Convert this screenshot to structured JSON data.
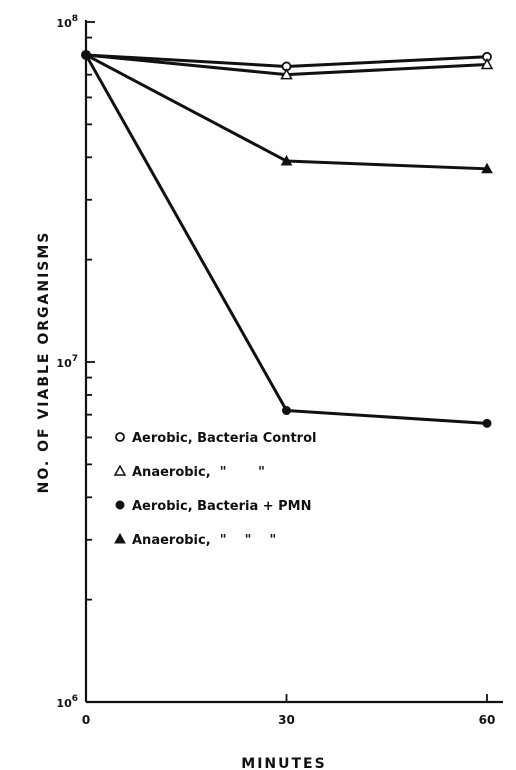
{
  "chart_data": {
    "type": "line",
    "xlabel": "MINUTES",
    "ylabel": "NO. OF VIABLE ORGANISMS",
    "x_ticks": [
      0,
      30,
      60
    ],
    "x_tick_labels": [
      "0",
      "30",
      "60"
    ],
    "xlim": [
      0,
      60
    ],
    "y_scale": "log",
    "ylim": [
      1000000,
      100000000
    ],
    "y_tick_labels": [
      {
        "base": "10",
        "exp": "8",
        "value": 100000000
      },
      {
        "base": "10",
        "exp": "7",
        "value": 10000000
      },
      {
        "base": "10",
        "exp": "6",
        "value": 1000000
      }
    ],
    "grid": false,
    "legend": {
      "placement": "center-left",
      "entries": [
        {
          "label": "Aerobic, Bacteria Control",
          "marker": "open-circle"
        },
        {
          "label": "Anaerobic,  \"       \"",
          "marker": "open-triangle"
        },
        {
          "label": "Aerobic, Bacteria + PMN",
          "marker": "filled-circle"
        },
        {
          "label": "Anaerobic,  \"    \"    \"",
          "marker": "filled-triangle"
        }
      ]
    },
    "series": [
      {
        "marker": "open-circle",
        "x": [
          0,
          30,
          60
        ],
        "y": [
          80000000,
          74000000,
          79000000
        ]
      },
      {
        "marker": "open-triangle",
        "x": [
          0,
          30,
          60
        ],
        "y": [
          80000000,
          70000000,
          75000000
        ]
      },
      {
        "marker": "filled-triangle",
        "x": [
          0,
          30,
          60
        ],
        "y": [
          80000000,
          39000000,
          37000000
        ]
      },
      {
        "marker": "filled-circle",
        "x": [
          0,
          30,
          60
        ],
        "y": [
          80000000,
          7200000,
          6600000
        ]
      }
    ]
  }
}
